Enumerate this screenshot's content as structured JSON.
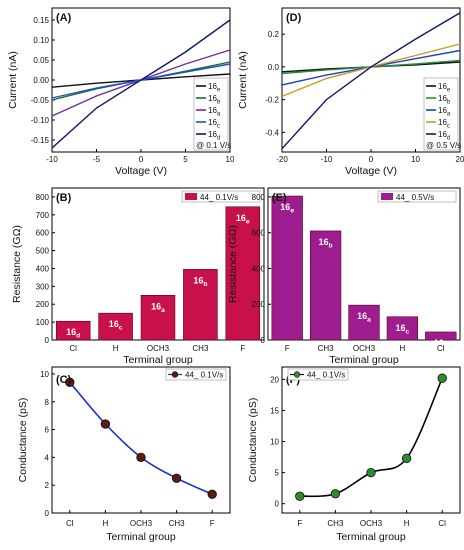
{
  "chart_data": [
    {
      "panel": "(A)",
      "type": "line",
      "xlabel": "Voltage (V)",
      "ylabel": "Current (nA)",
      "xlim": [
        -10,
        10
      ],
      "ylim": [
        -0.18,
        0.18
      ],
      "xticks": [
        -10,
        -5,
        0,
        5,
        10
      ],
      "yticks": [
        -0.15,
        -0.1,
        -0.05,
        0.0,
        0.05,
        0.1,
        0.15
      ],
      "legend_note": "@ 0.1 V/s",
      "legend_position": "bottom-right",
      "series": [
        {
          "name": "16e",
          "color": "#111111",
          "x": [
            -10,
            -5,
            0,
            5,
            10
          ],
          "y": [
            -0.018,
            -0.008,
            0.0,
            0.008,
            0.015
          ]
        },
        {
          "name": "16b",
          "color": "#1b6e2a",
          "x": [
            -10,
            -5,
            0,
            5,
            10
          ],
          "y": [
            -0.05,
            -0.022,
            0.0,
            0.022,
            0.045
          ]
        },
        {
          "name": "16a",
          "color": "#6a2ab0",
          "x": [
            -10,
            -5,
            0,
            5,
            10
          ],
          "y": [
            -0.09,
            -0.04,
            0.0,
            0.04,
            0.075
          ]
        },
        {
          "name": "16c",
          "color": "#1e4fd0",
          "x": [
            -10,
            -5,
            0,
            5,
            10
          ],
          "y": [
            -0.045,
            -0.02,
            0.0,
            0.02,
            0.04
          ]
        },
        {
          "name": "16d",
          "color": "#0c1a66",
          "x": [
            -10,
            -5,
            0,
            5,
            10
          ],
          "y": [
            -0.17,
            -0.07,
            0.0,
            0.07,
            0.15
          ]
        }
      ]
    },
    {
      "panel": "(D)",
      "type": "line",
      "xlabel": "Voltage (V)",
      "ylabel": "Current (nA)",
      "xlim": [
        -20,
        20
      ],
      "ylim": [
        -0.52,
        0.36
      ],
      "xticks": [
        -20,
        -10,
        0,
        10,
        20
      ],
      "yticks": [
        -0.4,
        -0.2,
        0.0,
        0.2
      ],
      "legend_note": "@ 0.5 V/s",
      "legend_position": "bottom-right",
      "series": [
        {
          "name": "16e",
          "color": "#111111",
          "x": [
            -20,
            -10,
            0,
            10,
            20
          ],
          "y": [
            -0.03,
            -0.012,
            0.0,
            0.012,
            0.03
          ]
        },
        {
          "name": "16b",
          "color": "#2a8a3a",
          "x": [
            -20,
            -10,
            0,
            10,
            20
          ],
          "y": [
            -0.04,
            -0.018,
            0.0,
            0.018,
            0.04
          ]
        },
        {
          "name": "16a",
          "color": "#1e3fd0",
          "x": [
            -20,
            -10,
            0,
            10,
            20
          ],
          "y": [
            -0.11,
            -0.05,
            0.0,
            0.05,
            0.1
          ]
        },
        {
          "name": "16c",
          "color": "#c89a1a",
          "x": [
            -20,
            -10,
            0,
            10,
            20
          ],
          "y": [
            -0.18,
            -0.07,
            0.0,
            0.07,
            0.14
          ]
        },
        {
          "name": "16d",
          "color": "#0c1a66",
          "x": [
            -20,
            -10,
            0,
            10,
            20
          ],
          "y": [
            -0.5,
            -0.2,
            0.0,
            0.17,
            0.33
          ]
        }
      ]
    },
    {
      "panel": "(B)",
      "type": "bar",
      "xlabel": "Terminal  group",
      "ylabel": "Resistance (GΩ)",
      "ylim": [
        0,
        850
      ],
      "yticks": [
        0,
        100,
        200,
        300,
        400,
        500,
        600,
        700,
        800
      ],
      "legend": "44_ 0.1V/s",
      "legend_position": "top-right",
      "bar_color": "#c8104a",
      "categories": [
        "Cl",
        "H",
        "OCH3",
        "CH3",
        "F"
      ],
      "bar_labels": [
        "16d",
        "16c",
        "16a",
        "16b",
        "16e"
      ],
      "values": [
        105,
        150,
        250,
        395,
        745
      ]
    },
    {
      "panel": "(E)",
      "type": "bar",
      "xlabel": "Terminal  group",
      "ylabel": "Resistance (GΩ)",
      "ylim": [
        0,
        850
      ],
      "yticks": [
        0,
        200,
        400,
        600,
        800
      ],
      "legend": "44_ 0.5V/s",
      "legend_position": "top-right",
      "bar_color": "#9e1d8e",
      "categories": [
        "F",
        "CH3",
        "OCH3",
        "H",
        "Cl"
      ],
      "bar_labels": [
        "16e",
        "16b",
        "16a",
        "16c",
        "16d"
      ],
      "values": [
        805,
        610,
        195,
        130,
        45
      ]
    },
    {
      "panel": "(C)",
      "type": "line",
      "xlabel": "Terminal group",
      "ylabel": "Conductance (pS)",
      "ylim": [
        0,
        10.5
      ],
      "yticks": [
        0,
        2,
        4,
        6,
        8,
        10
      ],
      "legend": "44_ 0.1V/s",
      "legend_position": "top-right",
      "line_color": "#1b2cc8",
      "categories": [
        "Cl",
        "H",
        "OCH3",
        "CH3",
        "F"
      ],
      "values": [
        9.4,
        6.4,
        4.0,
        2.5,
        1.35
      ]
    },
    {
      "panel": "(F)",
      "type": "line",
      "xlabel": "Terminal group",
      "ylabel": "Conductance (pS)",
      "ylim": [
        -1.5,
        22
      ],
      "yticks": [
        0,
        5,
        10,
        15,
        20
      ],
      "legend": "44_ 0.1V/s",
      "legend_position": "top-left",
      "line_color": "#000000",
      "categories": [
        "F",
        "CH3",
        "OCH3",
        "H",
        "Cl"
      ],
      "values": [
        1.2,
        1.6,
        5.0,
        7.3,
        20.2
      ]
    }
  ]
}
